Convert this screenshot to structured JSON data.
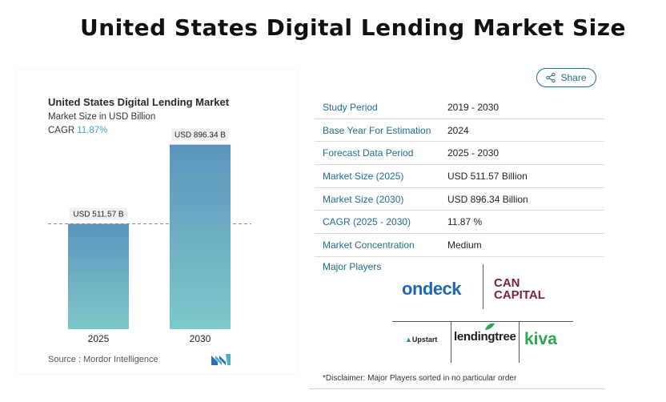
{
  "page_title": "United States Digital Lending Market Size",
  "share_label": "Share",
  "chart_data": {
    "type": "bar",
    "title": "United States Digital Lending Market",
    "subtitle": "Market Size in USD Billion",
    "cagr_label": "CAGR",
    "cagr_value": "11.87%",
    "categories": [
      "2025",
      "2030"
    ],
    "values": [
      511.57,
      896.34
    ],
    "data_labels": [
      "USD 511.57 B",
      "USD 896.34 B"
    ],
    "reference_line_value": 511.57,
    "ylim": [
      0,
      1000
    ],
    "bar_color_top": "#5b95be",
    "bar_color_bottom": "#7ec8c9",
    "grid": false
  },
  "source": "Source : Mordor Intelligence",
  "table": [
    {
      "key": "Study Period",
      "value": "2019 - 2030"
    },
    {
      "key": "Base Year For Estimation",
      "value": "2024"
    },
    {
      "key": "Forecast Data Period",
      "value": "2025 - 2030"
    },
    {
      "key": "Market Size (2025)",
      "value": "USD 511.57 Billion"
    },
    {
      "key": "Market Size (2030)",
      "value": "USD 896.34 Billion"
    },
    {
      "key": "CAGR (2025 - 2030)",
      "value": "11.87 %"
    },
    {
      "key": "Market Concentration",
      "value": "Medium"
    }
  ],
  "major_players_label": "Major Players",
  "players": {
    "ondeck": "ondeck",
    "cancapital_1": "CAN",
    "cancapital_2": "CAPITAL",
    "upstart": "Upstart",
    "lendingtree": "lendingtree",
    "kiva": "kiva"
  },
  "disclaimer": "*Disclaimer: Major Players sorted in no particular order",
  "colors": {
    "accent": "#1f6e8c",
    "cagr": "#3aa6c6"
  }
}
